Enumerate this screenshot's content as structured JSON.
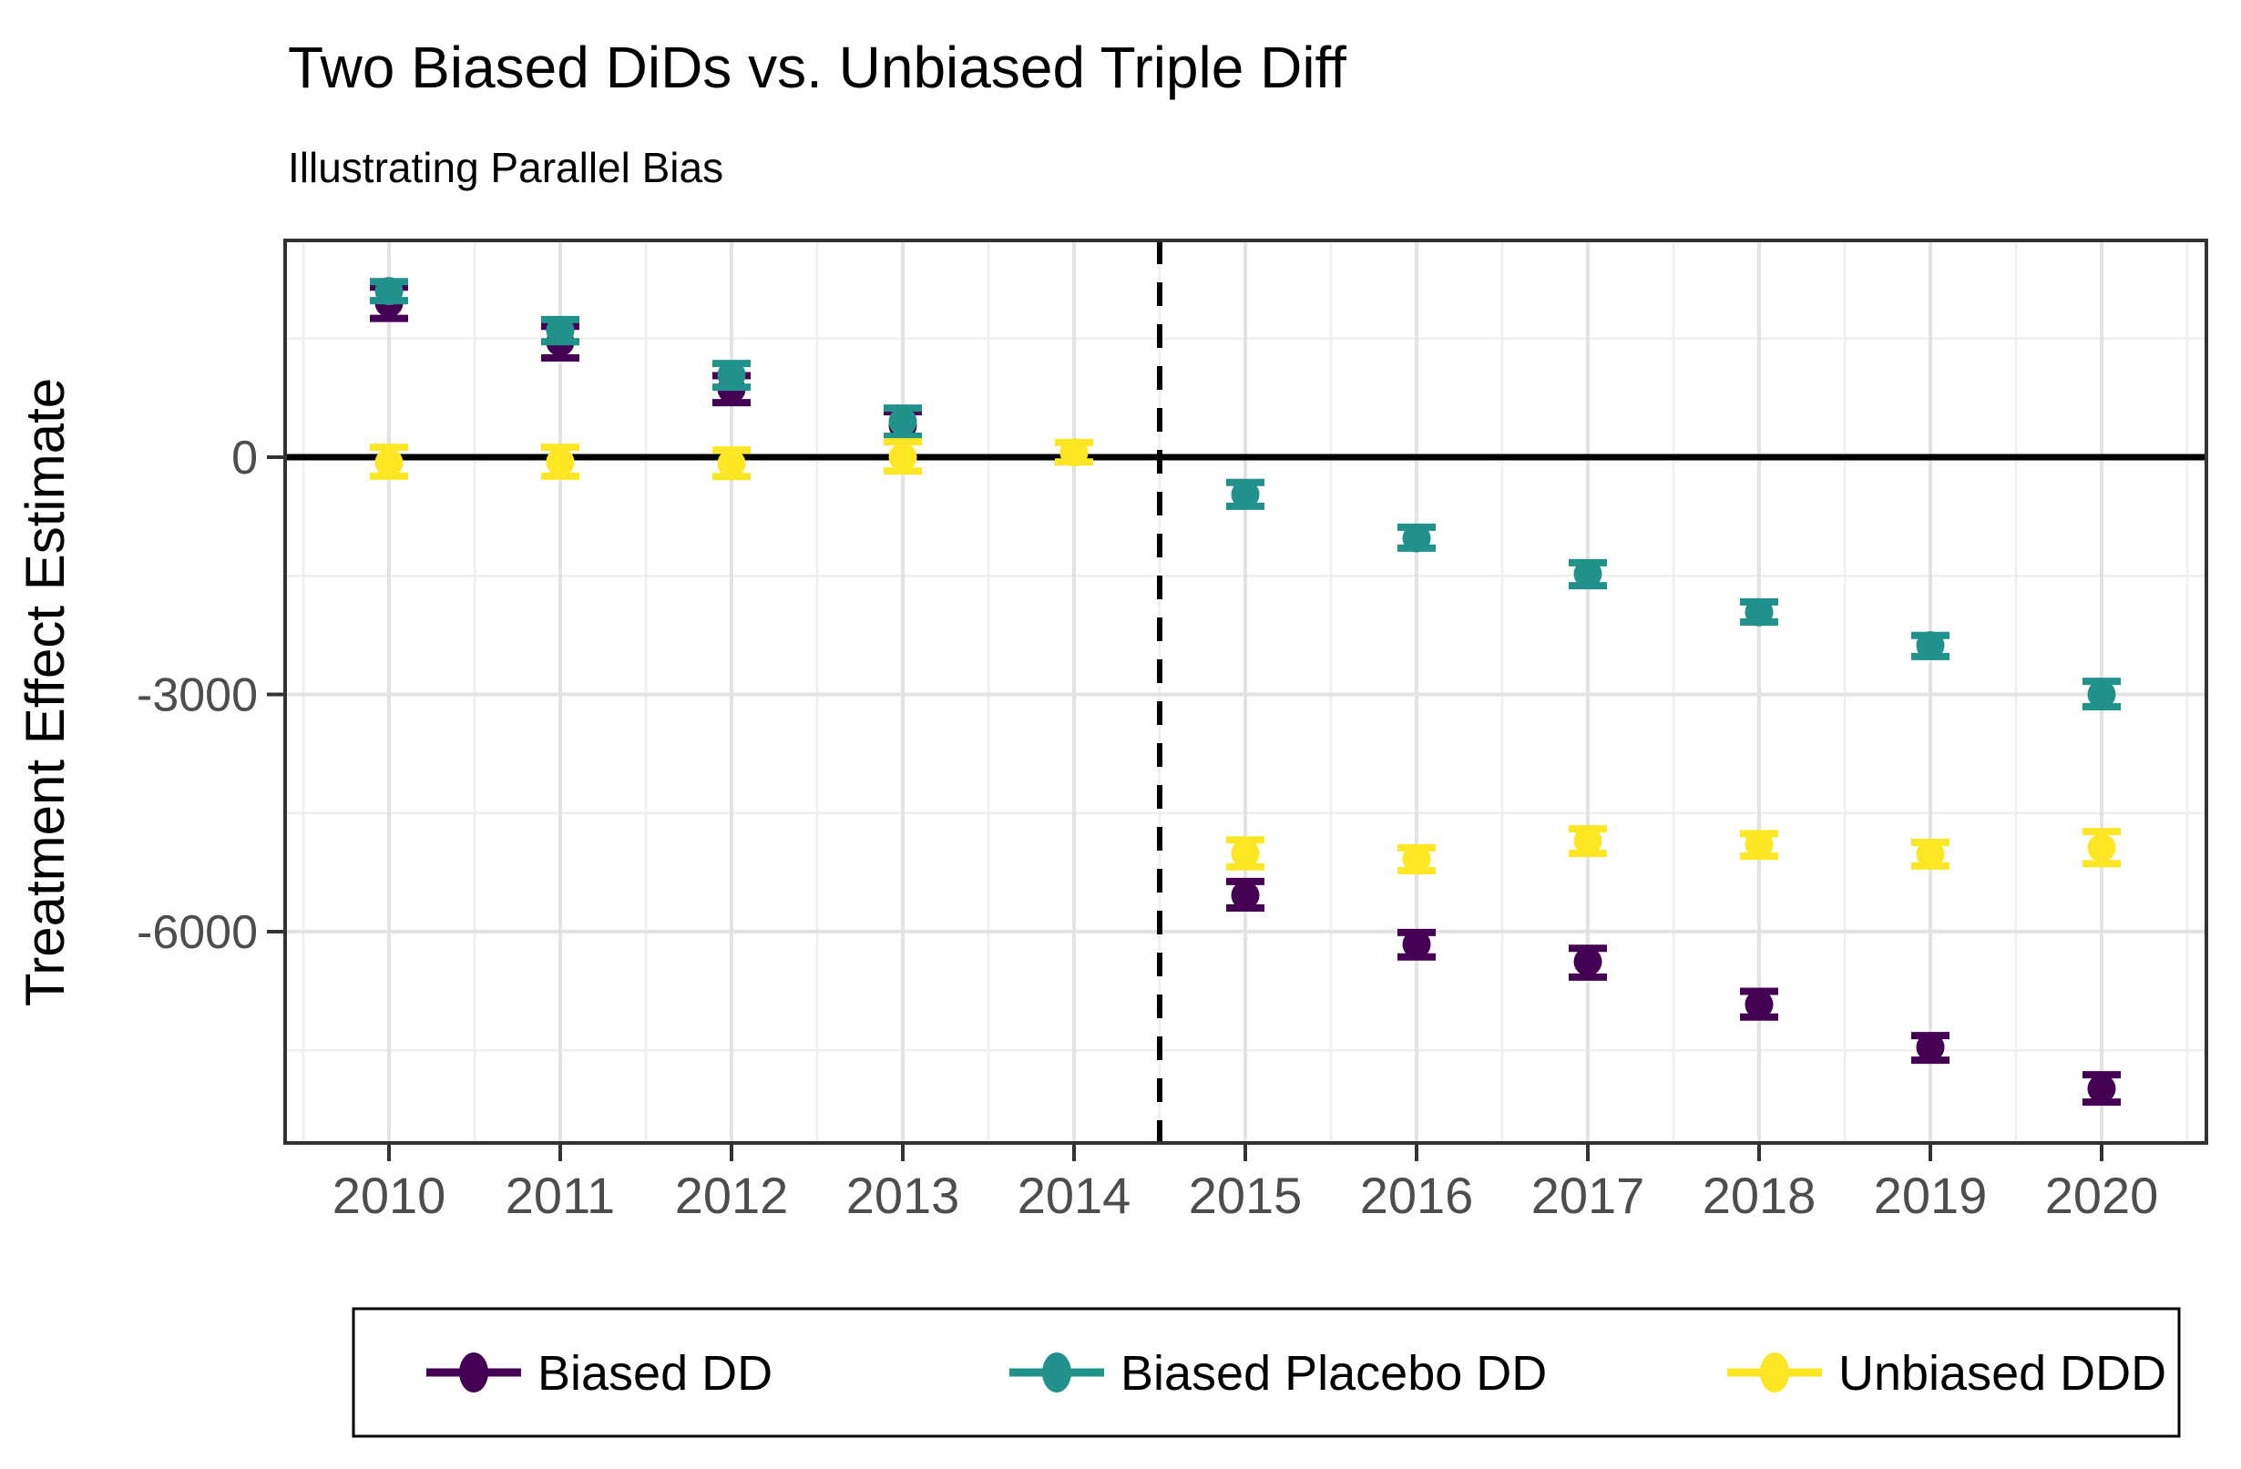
{
  "title": "Two Biased DiDs vs. Unbiased Triple Diff",
  "subtitle": "Illustrating Parallel Bias",
  "y_axis": {
    "title": "Treatment Effect Estimate",
    "tick_labels": [
      "0",
      "-3000",
      "-6000"
    ],
    "tick_values": [
      0,
      -3000,
      -6000
    ],
    "minor_gridline_values": [
      1500,
      -1500,
      -4500,
      -7500
    ]
  },
  "x_axis": {
    "tick_labels": [
      "2010",
      "2011",
      "2012",
      "2013",
      "2014",
      "2015",
      "2016",
      "2017",
      "2018",
      "2019",
      "2020"
    ],
    "tick_values": [
      2010,
      2011,
      2012,
      2013,
      2014,
      2015,
      2016,
      2017,
      2018,
      2019,
      2020
    ]
  },
  "legend": {
    "entries": [
      {
        "label": "Biased DD",
        "color": "#440154"
      },
      {
        "label": "Biased Placebo DD",
        "color": "#21918c"
      },
      {
        "label": "Unbiased DDD",
        "color": "#fde725"
      }
    ]
  },
  "colors": {
    "biased_dd": "#440154",
    "biased_placebo_dd": "#21918c",
    "unbiased_ddd": "#fde725",
    "axis_text": "#4d4d4d",
    "panel_border": "#333333",
    "grid_major": "#e3e3e3",
    "grid_minor": "#efefef",
    "reference_line": "#000000"
  },
  "chart_data": {
    "type": "scatter",
    "subtype": "pointrange-errorbar",
    "title": "Two Biased DiDs vs. Unbiased Triple Diff",
    "subtitle": "Illustrating Parallel Bias",
    "xlabel": "",
    "ylabel": "Treatment Effect Estimate",
    "x_ticks": [
      2010,
      2011,
      2012,
      2013,
      2014,
      2015,
      2016,
      2017,
      2018,
      2019,
      2020
    ],
    "y_ticks": [
      0,
      -3000,
      -6000
    ],
    "xlim": [
      2009.4,
      2020.6
    ],
    "ylim": [
      -8670,
      2740
    ],
    "grid": true,
    "legend_position": "bottom",
    "reference_lines": {
      "horizontal_y": 0,
      "vertical_x": 2014.5,
      "vertical_style": "dashed"
    },
    "series": [
      {
        "name": "Biased DD",
        "color": "#440154",
        "points": [
          {
            "year": 2010,
            "estimate": 1950,
            "ci_low": 1755,
            "ci_high": 2150
          },
          {
            "year": 2011,
            "estimate": 1455,
            "ci_low": 1255,
            "ci_high": 1655
          },
          {
            "year": 2012,
            "estimate": 860,
            "ci_low": 690,
            "ci_high": 1030
          },
          {
            "year": 2013,
            "estimate": 400,
            "ci_low": 230,
            "ci_high": 575
          },
          {
            "year": 2015,
            "estimate": -5540,
            "ci_low": -5700,
            "ci_high": -5365
          },
          {
            "year": 2016,
            "estimate": -6160,
            "ci_low": -6320,
            "ci_high": -6010
          },
          {
            "year": 2017,
            "estimate": -6380,
            "ci_low": -6575,
            "ci_high": -6210
          },
          {
            "year": 2018,
            "estimate": -6920,
            "ci_low": -7080,
            "ci_high": -6755
          },
          {
            "year": 2019,
            "estimate": -7460,
            "ci_low": -7625,
            "ci_high": -7315
          },
          {
            "year": 2020,
            "estimate": -7985,
            "ci_low": -8155,
            "ci_high": -7810
          }
        ]
      },
      {
        "name": "Biased Placebo DD",
        "color": "#21918c",
        "points": [
          {
            "year": 2010,
            "estimate": 2100,
            "ci_low": 1980,
            "ci_high": 2220
          },
          {
            "year": 2011,
            "estimate": 1600,
            "ci_low": 1460,
            "ci_high": 1740
          },
          {
            "year": 2012,
            "estimate": 1040,
            "ci_low": 885,
            "ci_high": 1185
          },
          {
            "year": 2013,
            "estimate": 450,
            "ci_low": 265,
            "ci_high": 620
          },
          {
            "year": 2015,
            "estimate": -470,
            "ci_low": -620,
            "ci_high": -320
          },
          {
            "year": 2016,
            "estimate": -1025,
            "ci_low": -1150,
            "ci_high": -885
          },
          {
            "year": 2017,
            "estimate": -1475,
            "ci_low": -1625,
            "ci_high": -1335
          },
          {
            "year": 2018,
            "estimate": -1960,
            "ci_low": -2085,
            "ci_high": -1830
          },
          {
            "year": 2019,
            "estimate": -2380,
            "ci_low": -2520,
            "ci_high": -2255
          },
          {
            "year": 2020,
            "estimate": -3000,
            "ci_low": -3155,
            "ci_high": -2835
          }
        ]
      },
      {
        "name": "Unbiased DDD",
        "color": "#fde725",
        "points": [
          {
            "year": 2010,
            "estimate": -70,
            "ci_low": -240,
            "ci_high": 125
          },
          {
            "year": 2011,
            "estimate": -60,
            "ci_low": -240,
            "ci_high": 125
          },
          {
            "year": 2012,
            "estimate": -80,
            "ci_low": -245,
            "ci_high": 90
          },
          {
            "year": 2013,
            "estimate": 0,
            "ci_low": -175,
            "ci_high": 195
          },
          {
            "year": 2014,
            "estimate": 60,
            "ci_low": -60,
            "ci_high": 185
          },
          {
            "year": 2015,
            "estimate": -5010,
            "ci_low": -5180,
            "ci_high": -4840
          },
          {
            "year": 2016,
            "estimate": -5080,
            "ci_low": -5230,
            "ci_high": -4940
          },
          {
            "year": 2017,
            "estimate": -4850,
            "ci_low": -5010,
            "ci_high": -4700
          },
          {
            "year": 2018,
            "estimate": -4895,
            "ci_low": -5045,
            "ci_high": -4760
          },
          {
            "year": 2019,
            "estimate": -5020,
            "ci_low": -5170,
            "ci_high": -4870
          },
          {
            "year": 2020,
            "estimate": -4940,
            "ci_low": -5140,
            "ci_high": -4735
          }
        ]
      }
    ]
  }
}
